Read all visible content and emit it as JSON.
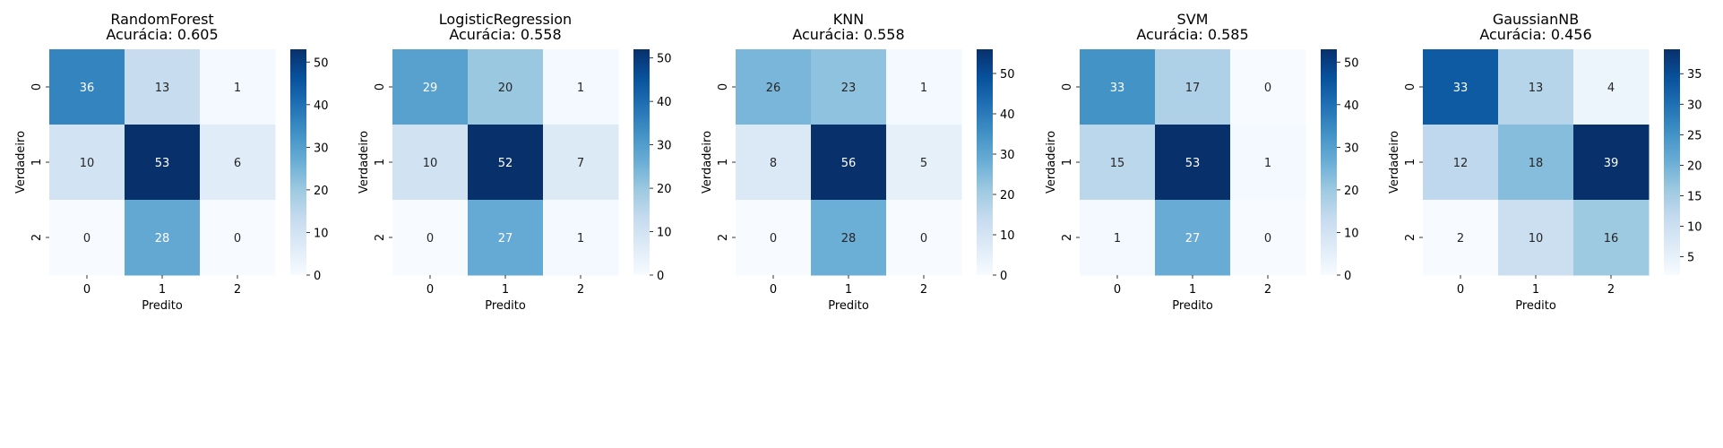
{
  "colors": {
    "cmap_light": "#f7fbff",
    "cmap_dark": "#08306b",
    "text_light": "#ffffff",
    "text_dark": "#262626"
  },
  "chart_data": [
    {
      "type": "heatmap",
      "title": "RandomForest",
      "subtitle": "Acurácia: 0.605",
      "xlabel": "Predito",
      "ylabel": "Verdadeiro",
      "x_ticks": [
        "0",
        "1",
        "2"
      ],
      "y_ticks": [
        "0",
        "1",
        "2"
      ],
      "matrix": [
        [
          36,
          13,
          1
        ],
        [
          10,
          53,
          6
        ],
        [
          0,
          28,
          0
        ]
      ],
      "vmin": 0,
      "vmax": 53,
      "colorbar_ticks": [
        0,
        10,
        20,
        30,
        40,
        50
      ]
    },
    {
      "type": "heatmap",
      "title": "LogisticRegression",
      "subtitle": "Acurácia: 0.558",
      "xlabel": "Predito",
      "ylabel": "Verdadeiro",
      "x_ticks": [
        "0",
        "1",
        "2"
      ],
      "y_ticks": [
        "0",
        "1",
        "2"
      ],
      "matrix": [
        [
          29,
          20,
          1
        ],
        [
          10,
          52,
          7
        ],
        [
          0,
          27,
          1
        ]
      ],
      "vmin": 0,
      "vmax": 52,
      "colorbar_ticks": [
        0,
        10,
        20,
        30,
        40,
        50
      ]
    },
    {
      "type": "heatmap",
      "title": "KNN",
      "subtitle": "Acurácia: 0.558",
      "xlabel": "Predito",
      "ylabel": "Verdadeiro",
      "x_ticks": [
        "0",
        "1",
        "2"
      ],
      "y_ticks": [
        "0",
        "1",
        "2"
      ],
      "matrix": [
        [
          26,
          23,
          1
        ],
        [
          8,
          56,
          5
        ],
        [
          0,
          28,
          0
        ]
      ],
      "vmin": 0,
      "vmax": 56,
      "colorbar_ticks": [
        0,
        10,
        20,
        30,
        40,
        50
      ]
    },
    {
      "type": "heatmap",
      "title": "SVM",
      "subtitle": "Acurácia: 0.585",
      "xlabel": "Predito",
      "ylabel": "Verdadeiro",
      "x_ticks": [
        "0",
        "1",
        "2"
      ],
      "y_ticks": [
        "0",
        "1",
        "2"
      ],
      "matrix": [
        [
          33,
          17,
          0
        ],
        [
          15,
          53,
          1
        ],
        [
          1,
          27,
          0
        ]
      ],
      "vmin": 0,
      "vmax": 53,
      "colorbar_ticks": [
        0,
        10,
        20,
        30,
        40,
        50
      ]
    },
    {
      "type": "heatmap",
      "title": "GaussianNB",
      "subtitle": "Acurácia: 0.456",
      "xlabel": "Predito",
      "ylabel": "Verdadeiro",
      "x_ticks": [
        "0",
        "1",
        "2"
      ],
      "y_ticks": [
        "0",
        "1",
        "2"
      ],
      "matrix": [
        [
          33,
          13,
          4
        ],
        [
          12,
          18,
          39
        ],
        [
          2,
          10,
          16
        ]
      ],
      "vmin": 2,
      "vmax": 39,
      "colorbar_ticks": [
        5,
        10,
        15,
        20,
        25,
        30,
        35
      ]
    }
  ]
}
